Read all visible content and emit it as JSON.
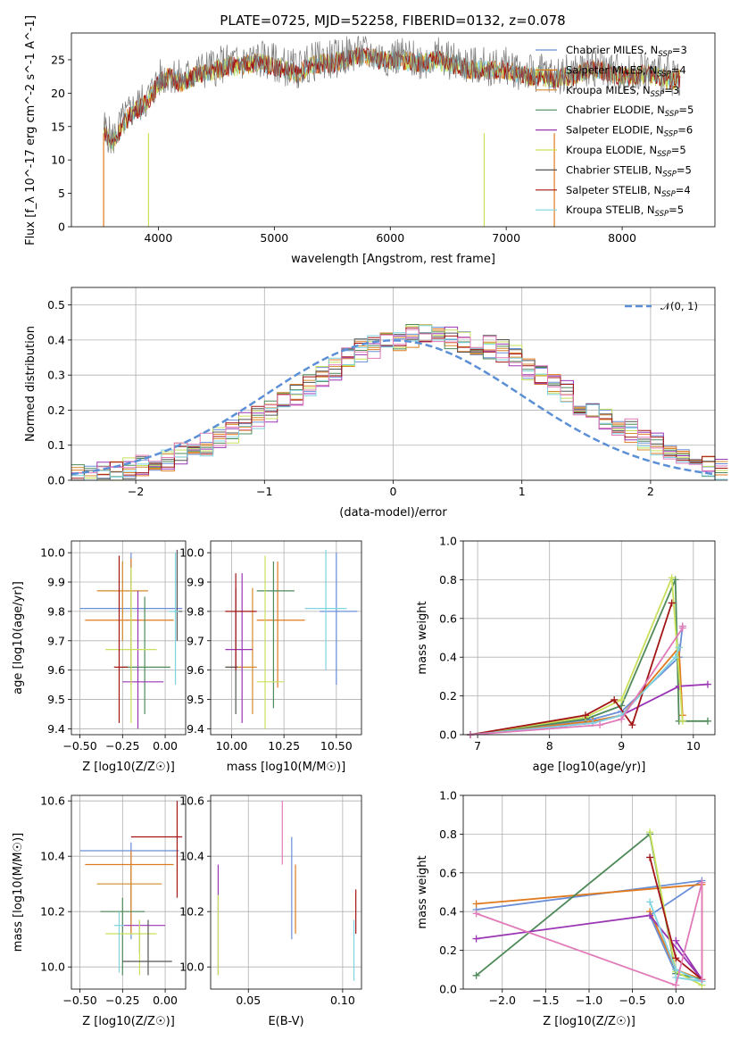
{
  "colors": {
    "chabrier_miles": "#6a8fd8",
    "salpeter_miles": "#e07a1f",
    "kroupa_miles": "#d48a2a",
    "chabrier_elodie": "#4f8a5a",
    "salpeter_elodie": "#9a35b4",
    "kroupa_elodie": "#c8e05a",
    "chabrier_stelib": "#555555",
    "salpeter_stelib": "#a31515",
    "kroupa_stelib": "#7fd3e0",
    "spectrum": "#7a7a7a",
    "pink": "#e07ab8",
    "normal": "#5b8fd6"
  },
  "chart_data": [
    {
      "type": "line",
      "title": "PLATE=0725, MJD=52258, FIBERID=0132, z=0.078",
      "xlabel": "wavelength [Angstrom, rest frame]",
      "ylabel": "Flux [f_λ 10^-17 erg cm^-2 s^-1 A^-1]",
      "xlim": [
        3250,
        8800
      ],
      "ylim": [
        0,
        29
      ],
      "xticks": [
        "4000",
        "5000",
        "6000",
        "7000",
        "8000"
      ],
      "yticks": [
        "0",
        "5",
        "10",
        "15",
        "20",
        "25"
      ],
      "legend_position": "right",
      "legend": [
        {
          "label": "Chabrier MILES, N",
          "sub": "SSP",
          "rest": "=3"
        },
        {
          "label": "Salpeter MILES, N",
          "sub": "SSP",
          "rest": "=4"
        },
        {
          "label": "Kroupa MILES, N",
          "sub": "SSP",
          "rest": "=3"
        },
        {
          "label": "Chabrier ELODIE, N",
          "sub": "SSP",
          "rest": "=5"
        },
        {
          "label": "Salpeter ELODIE, N",
          "sub": "SSP",
          "rest": "=6"
        },
        {
          "label": "Kroupa ELODIE, N",
          "sub": "SSP",
          "rest": "=5"
        },
        {
          "label": "Chabrier STELIB, N",
          "sub": "SSP",
          "rest": "=5"
        },
        {
          "label": "Salpeter STELIB, N",
          "sub": "SSP",
          "rest": "=4"
        },
        {
          "label": "Kroupa STELIB, N",
          "sub": "SSP",
          "rest": "=5"
        }
      ],
      "spectrum_x": [
        3530,
        3600,
        3700,
        3800,
        3900,
        4000,
        4100,
        4200,
        4300,
        4400,
        4500,
        4600,
        4700,
        4800,
        4900,
        5000,
        5100,
        5200,
        5300,
        5400,
        5500,
        5600,
        5700,
        5800,
        5900,
        6000,
        6100,
        6200,
        6300,
        6400,
        6500,
        6600,
        6700,
        6800,
        6900,
        7000,
        7100,
        7200,
        7300,
        7400,
        7500,
        7600,
        7700,
        7800,
        7900,
        8000,
        8100,
        8200,
        8300,
        8400,
        8500
      ],
      "spectrum_y": [
        15,
        13,
        16,
        18,
        19,
        22,
        23,
        22,
        23,
        23.5,
        24,
        24.5,
        24.5,
        25,
        25,
        24.5,
        24,
        23.5,
        24.5,
        25,
        25,
        25.5,
        26,
        26,
        25.5,
        25.5,
        25.5,
        25,
        25,
        25.5,
        25,
        24.5,
        24,
        24,
        24,
        24,
        23.5,
        23,
        23,
        22.5,
        23,
        23,
        24,
        24,
        23.5,
        23,
        23,
        23.5,
        23,
        22.5,
        22.5
      ]
    },
    {
      "type": "bar",
      "subtype": "step-histogram",
      "xlabel": "(data-model)/error",
      "ylabel": "Normed distribution",
      "xlim": [
        -2.5,
        2.5
      ],
      "ylim": [
        0,
        0.55
      ],
      "xticks": [
        "−2",
        "−1",
        "0",
        "1",
        "2"
      ],
      "yticks": [
        "0.0",
        "0.1",
        "0.2",
        "0.3",
        "0.4",
        "0.5"
      ],
      "legend_position": "top-right",
      "legend": "𝒩(0, 1)",
      "bin_width": 0.1,
      "base_profile": [
        0.01,
        0.012,
        0.02,
        0.025,
        0.03,
        0.04,
        0.05,
        0.06,
        0.075,
        0.085,
        0.1,
        0.12,
        0.14,
        0.16,
        0.18,
        0.2,
        0.22,
        0.24,
        0.27,
        0.3,
        0.32,
        0.35,
        0.37,
        0.38,
        0.39,
        0.4,
        0.41,
        0.41,
        0.42,
        0.41,
        0.4,
        0.39,
        0.38,
        0.37,
        0.35,
        0.32,
        0.3,
        0.27,
        0.25,
        0.22,
        0.2,
        0.18,
        0.16,
        0.14,
        0.12,
        0.1,
        0.08,
        0.065,
        0.05,
        0.04,
        0.03
      ]
    },
    {
      "type": "scatter",
      "xlabel": "Z [log10(Z/Z☉)]",
      "ylabel": "age  [log10(age/yr)]",
      "xlim": [
        -0.55,
        0.12
      ],
      "ylim": [
        9.38,
        10.04
      ],
      "xticks": [
        "−0.50",
        "−0.25",
        "0.00"
      ],
      "yticks": [
        "9.4",
        "9.5",
        "9.6",
        "9.7",
        "9.8",
        "9.9",
        "10.0"
      ],
      "points": [
        {
          "x": -0.2,
          "y": 9.81,
          "x0": -0.5,
          "x1": 0.1,
          "y0": 9.6,
          "y1": 10.0
        },
        {
          "x": -0.2,
          "y": 9.77,
          "x0": -0.47,
          "x1": 0.05,
          "y0": 9.55,
          "y1": 9.98
        },
        {
          "x": -0.25,
          "y": 9.87,
          "x0": -0.4,
          "x1": -0.1,
          "y0": 9.7,
          "y1": 9.97
        },
        {
          "x": -0.12,
          "y": 9.61,
          "x0": -0.25,
          "x1": 0.03,
          "y0": 9.45,
          "y1": 9.85
        },
        {
          "x": -0.16,
          "y": 9.56,
          "x0": -0.25,
          "x1": -0.01,
          "y0": 9.4,
          "y1": 9.87
        },
        {
          "x": -0.2,
          "y": 9.67,
          "x0": -0.35,
          "x1": -0.05,
          "y0": 9.42,
          "y1": 9.95
        },
        {
          "x": 0.07,
          "y": 9.8,
          "x0": 0.05,
          "x1": 0.1,
          "y0": 9.7,
          "y1": 10.01
        },
        {
          "x": -0.27,
          "y": 9.61,
          "x0": -0.3,
          "x1": -0.22,
          "y0": 9.42,
          "y1": 9.99
        },
        {
          "x": 0.06,
          "y": 9.8,
          "x0": 0.02,
          "x1": 0.08,
          "y0": 9.55,
          "y1": 10.0
        }
      ]
    },
    {
      "type": "scatter",
      "xlabel": "mass [log10(M/M☉)]",
      "ylabel": "",
      "xlim": [
        9.9,
        10.62
      ],
      "ylim": [
        9.38,
        10.04
      ],
      "xticks": [
        "10.00",
        "10.25",
        "10.50"
      ],
      "yticks": [
        "9.4",
        "9.5",
        "9.6",
        "9.7",
        "9.8",
        "9.9",
        "10.0"
      ],
      "points": [
        {
          "x": 10.5,
          "y": 9.8,
          "x0": 10.42,
          "x1": 10.6,
          "y0": 9.55,
          "y1": 10.0
        },
        {
          "x": 10.22,
          "y": 9.77,
          "x0": 10.12,
          "x1": 10.35,
          "y0": 9.54,
          "y1": 9.97
        },
        {
          "x": 10.1,
          "y": 9.61,
          "x0": 9.97,
          "x1": 10.12,
          "y0": 9.45,
          "y1": 9.88
        },
        {
          "x": 10.2,
          "y": 9.87,
          "x0": 10.12,
          "x1": 10.3,
          "y0": 9.47,
          "y1": 9.97
        },
        {
          "x": 10.05,
          "y": 9.67,
          "x0": 9.97,
          "x1": 10.1,
          "y0": 9.42,
          "y1": 9.93
        },
        {
          "x": 10.16,
          "y": 9.56,
          "x0": 10.12,
          "x1": 10.25,
          "y0": 9.4,
          "y1": 9.99
        },
        {
          "x": 10.02,
          "y": 9.61,
          "x0": 9.97,
          "x1": 10.03,
          "y0": 9.45,
          "y1": 9.88
        },
        {
          "x": 10.02,
          "y": 9.8,
          "x0": 9.97,
          "x1": 10.12,
          "y0": 9.6,
          "y1": 9.93
        },
        {
          "x": 10.45,
          "y": 9.81,
          "x0": 10.35,
          "x1": 10.55,
          "y0": 9.6,
          "y1": 10.01
        }
      ]
    },
    {
      "type": "line",
      "xlabel": "age  [log10(age/yr)]",
      "ylabel": "mass weight",
      "xlim": [
        6.8,
        10.3
      ],
      "ylim": [
        0,
        1.0
      ],
      "xticks": [
        "7",
        "8",
        "9",
        "10"
      ],
      "yticks": [
        "0.0",
        "0.2",
        "0.4",
        "0.6",
        "0.8",
        "1.0"
      ],
      "series": [
        {
          "color_key": "chabrier_miles",
          "x": [
            6.9,
            8.6,
            9.0,
            9.8,
            9.85
          ],
          "y": [
            0.0,
            0.08,
            0.12,
            0.4,
            0.56
          ]
        },
        {
          "color_key": "salpeter_miles",
          "x": [
            6.9,
            8.6,
            9.0,
            9.8,
            9.85
          ],
          "y": [
            0.0,
            0.07,
            0.1,
            0.45,
            0.1
          ]
        },
        {
          "color_key": "chabrier_elodie",
          "x": [
            6.9,
            8.5,
            9.0,
            9.75,
            9.8,
            10.2
          ],
          "y": [
            0.0,
            0.08,
            0.15,
            0.8,
            0.07,
            0.07
          ]
        },
        {
          "color_key": "salpeter_elodie",
          "x": [
            6.9,
            8.6,
            9.0,
            9.8,
            10.2
          ],
          "y": [
            0.0,
            0.06,
            0.1,
            0.25,
            0.26
          ]
        },
        {
          "color_key": "kroupa_elodie",
          "x": [
            6.9,
            8.5,
            9.0,
            9.7,
            9.85
          ],
          "y": [
            0.0,
            0.09,
            0.18,
            0.81,
            0.07
          ]
        },
        {
          "color_key": "salpeter_stelib",
          "x": [
            6.9,
            8.5,
            8.9,
            9.15,
            9.7
          ],
          "y": [
            0.0,
            0.1,
            0.18,
            0.05,
            0.68
          ]
        },
        {
          "color_key": "kroupa_stelib",
          "x": [
            6.9,
            8.6,
            9.0,
            9.75,
            9.8
          ],
          "y": [
            0.0,
            0.06,
            0.1,
            0.4,
            0.45
          ]
        },
        {
          "color_key": "pink",
          "x": [
            6.9,
            8.7,
            9.0,
            9.85,
            9.85
          ],
          "y": [
            0.0,
            0.05,
            0.08,
            0.55,
            0.56
          ]
        }
      ]
    },
    {
      "type": "scatter",
      "xlabel": "Z [log10(Z/Z☉)]",
      "ylabel": "mass [log10(M/M☉)]",
      "xlim": [
        -0.55,
        0.12
      ],
      "ylim": [
        9.92,
        10.62
      ],
      "xticks": [
        "−0.50",
        "−0.25",
        "0.00"
      ],
      "yticks": [
        "10.0",
        "10.2",
        "10.4",
        "10.6"
      ],
      "points": [
        {
          "x": -0.2,
          "y": 10.42,
          "x0": -0.5,
          "x1": 0.08,
          "y0": 10.1,
          "y1": 10.45
        },
        {
          "x": -0.2,
          "y": 10.37,
          "x0": -0.47,
          "x1": 0.05,
          "y0": 10.12,
          "y1": 10.42
        },
        {
          "x": -0.2,
          "y": 10.3,
          "x0": -0.4,
          "x1": -0.02,
          "y0": 10.2,
          "y1": 10.37
        },
        {
          "x": -0.25,
          "y": 10.2,
          "x0": -0.38,
          "x1": -0.12,
          "y0": 9.97,
          "y1": 10.25
        },
        {
          "x": -0.15,
          "y": 10.15,
          "x0": -0.25,
          "x1": -0.0,
          "y0": 10.05,
          "y1": 10.17
        },
        {
          "x": -0.15,
          "y": 10.12,
          "x0": -0.35,
          "x1": -0.05,
          "y0": 9.97,
          "y1": 10.17
        },
        {
          "x": -0.1,
          "y": 10.02,
          "x0": -0.25,
          "x1": 0.04,
          "y0": 9.97,
          "y1": 10.17
        },
        {
          "x": 0.07,
          "y": 10.47,
          "x0": -0.2,
          "x1": 0.1,
          "y0": 10.25,
          "y1": 10.6
        },
        {
          "x": -0.27,
          "y": 10.15,
          "x0": -0.3,
          "x1": -0.24,
          "y0": 9.98,
          "y1": 10.2
        }
      ]
    },
    {
      "type": "scatter",
      "xlabel": "E(B-V)",
      "ylabel": "",
      "xlim": [
        0.03,
        0.11
      ],
      "ylim": [
        9.92,
        10.62
      ],
      "xticks": [
        "0.05",
        "0.10"
      ],
      "yticks": [
        "10.0",
        "10.2",
        "10.4",
        "10.6"
      ],
      "points": [
        {
          "x": 0.034,
          "y": 10.25,
          "y0": 9.97,
          "y1": 10.37,
          "color_key": "salpeter_elodie"
        },
        {
          "x": 0.034,
          "y": 10.1,
          "y0": 9.97,
          "y1": 10.26,
          "color_key": "kroupa_elodie"
        },
        {
          "x": 0.068,
          "y": 10.47,
          "y0": 10.37,
          "y1": 10.6,
          "color_key": "pink"
        },
        {
          "x": 0.073,
          "y": 10.3,
          "y0": 10.1,
          "y1": 10.47,
          "color_key": "chabrier_miles"
        },
        {
          "x": 0.075,
          "y": 10.2,
          "y0": 10.12,
          "y1": 10.37,
          "color_key": "salpeter_miles"
        },
        {
          "x": 0.107,
          "y": 10.2,
          "y0": 10.12,
          "y1": 10.28,
          "color_key": "salpeter_stelib"
        },
        {
          "x": 0.106,
          "y": 10.05,
          "y0": 9.95,
          "y1": 10.17,
          "color_key": "kroupa_stelib"
        }
      ]
    },
    {
      "type": "line",
      "xlabel": "Z [log10(Z/Z☉)]",
      "ylabel": "mass weight",
      "xlim": [
        -2.45,
        0.45
      ],
      "ylim": [
        0,
        1.0
      ],
      "xticks": [
        "−2.0",
        "−1.5",
        "−1.0",
        "−0.5",
        "0.0"
      ],
      "yticks": [
        "0.0",
        "0.2",
        "0.4",
        "0.6",
        "0.8",
        "1.0"
      ],
      "series": [
        {
          "color_key": "chabrier_miles",
          "x": [
            -2.3,
            0.3,
            -0.3,
            0.0,
            0.3
          ],
          "y": [
            0.41,
            0.56,
            0.38,
            0.08,
            0.05
          ]
        },
        {
          "color_key": "salpeter_miles",
          "x": [
            -2.3,
            0.3,
            0.3,
            0.0,
            -0.3
          ],
          "y": [
            0.44,
            0.54,
            0.05,
            0.1,
            0.4
          ]
        },
        {
          "color_key": "chabrier_elodie",
          "x": [
            -2.3,
            -0.3,
            0.0,
            0.3
          ],
          "y": [
            0.07,
            0.8,
            0.08,
            0.05
          ]
        },
        {
          "color_key": "salpeter_elodie",
          "x": [
            -2.3,
            -0.3,
            0.3,
            0.0
          ],
          "y": [
            0.26,
            0.38,
            0.05,
            0.25
          ]
        },
        {
          "color_key": "kroupa_elodie",
          "x": [
            -0.3,
            0.0,
            0.3
          ],
          "y": [
            0.81,
            0.09,
            0.02
          ]
        },
        {
          "color_key": "salpeter_stelib",
          "x": [
            -0.3,
            0.0,
            0.3
          ],
          "y": [
            0.68,
            0.16,
            0.05
          ]
        },
        {
          "color_key": "kroupa_stelib",
          "x": [
            -0.3,
            0.0,
            0.3,
            0.0
          ],
          "y": [
            0.45,
            0.1,
            0.04,
            0.06
          ]
        },
        {
          "color_key": "pink",
          "x": [
            -2.3,
            0.0,
            0.3,
            0.3
          ],
          "y": [
            0.39,
            0.02,
            0.55,
            0.05
          ]
        }
      ]
    }
  ]
}
